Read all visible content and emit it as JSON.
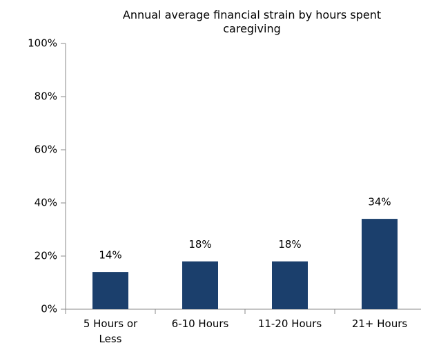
{
  "chart_data": {
    "type": "bar",
    "title": "Annual average financial strain by hours spent caregiving",
    "categories": [
      "5 Hours or Less",
      "6-10 Hours",
      "11-20 Hours",
      "21+ Hours"
    ],
    "values": [
      14,
      18,
      18,
      34
    ],
    "value_labels": [
      "14%",
      "18%",
      "18%",
      "34%"
    ],
    "color": "#1b3f6c",
    "ylim": [
      0,
      100
    ],
    "yticks": [
      {
        "value": 0,
        "label": "0%"
      },
      {
        "value": 20,
        "label": "20%"
      },
      {
        "value": 40,
        "label": "40%"
      },
      {
        "value": 60,
        "label": "60%"
      },
      {
        "value": 80,
        "label": "80%"
      },
      {
        "value": 100,
        "label": "100%"
      }
    ],
    "grid": false
  }
}
